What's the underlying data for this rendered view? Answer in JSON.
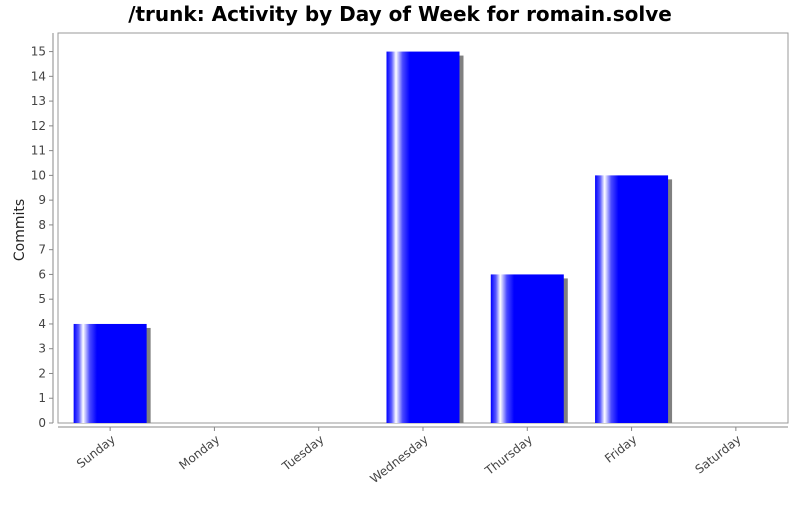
{
  "chart_data": {
    "type": "bar",
    "title": "/trunk: Activity by Day of Week for romain.solve",
    "xlabel": "",
    "ylabel": "Commits",
    "categories": [
      "Sunday",
      "Monday",
      "Tuesday",
      "Wednesday",
      "Thursday",
      "Friday",
      "Saturday"
    ],
    "values": [
      4,
      0,
      0,
      15,
      6,
      10,
      0
    ],
    "ylim": [
      0,
      15.75
    ],
    "yticks": [
      0,
      1,
      2,
      3,
      4,
      5,
      6,
      7,
      8,
      9,
      10,
      11,
      12,
      13,
      14,
      15
    ],
    "bar_color": "#0000ff",
    "grid": false,
    "legend": "none"
  }
}
